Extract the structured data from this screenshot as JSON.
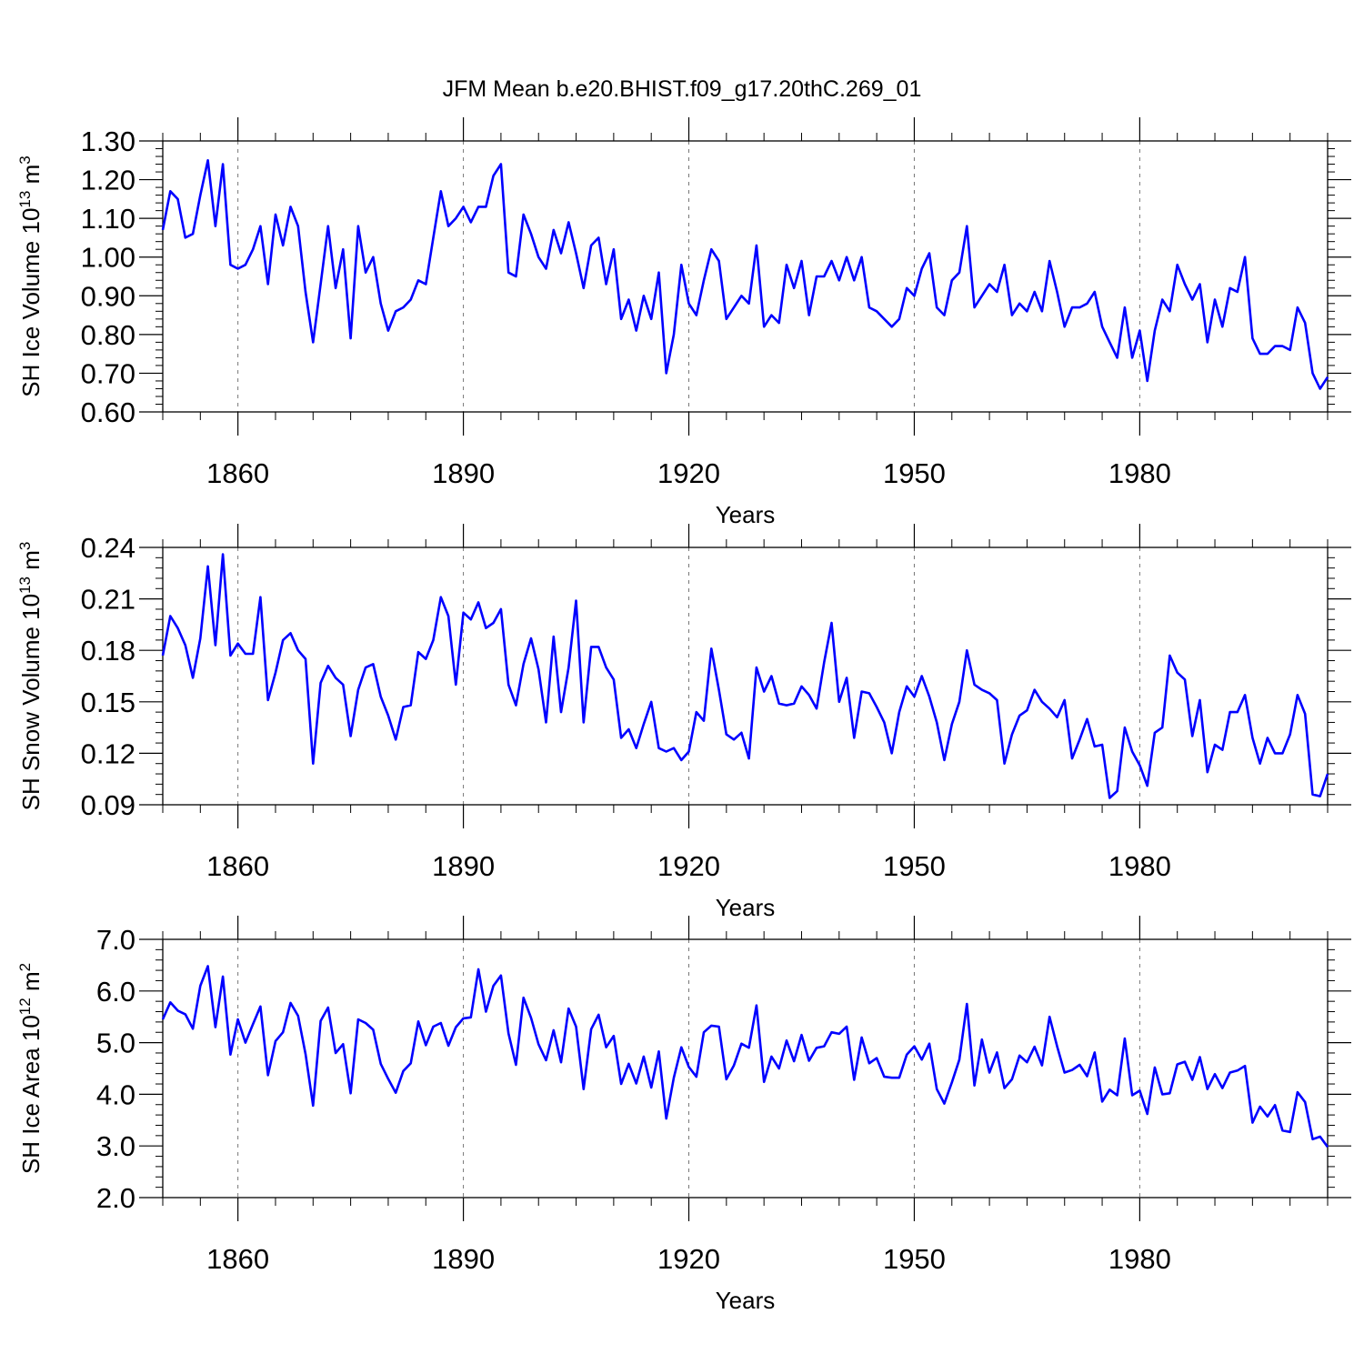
{
  "figure": {
    "title": "JFM Mean b.e20.BHIST.f09_g17.20thC.269_01",
    "series_color": "#0000ff"
  },
  "chart_data": [
    {
      "type": "line",
      "ylabel": "SH Ice Volume 10",
      "ylabel_sup": "13",
      "ylabel_unit": " m",
      "ylabel_unit_sup": "3",
      "xlabel": "Years",
      "xlim": [
        1850,
        2005
      ],
      "ylim": [
        0.6,
        1.3
      ],
      "yticks": [
        "0.60",
        "0.70",
        "0.80",
        "0.90",
        "1.00",
        "1.10",
        "1.20",
        "1.30"
      ],
      "xticks": [
        "1860",
        "1890",
        "1920",
        "1950",
        "1980"
      ],
      "grid": "vertical dashed at major x ticks",
      "series": [
        {
          "color": "#0000ff",
          "x_start": 1850,
          "values": [
            1.07,
            1.17,
            1.15,
            1.05,
            1.06,
            1.16,
            1.25,
            1.08,
            1.24,
            0.98,
            0.97,
            0.98,
            1.02,
            1.08,
            0.93,
            1.11,
            1.03,
            1.13,
            1.08,
            0.91,
            0.78,
            0.93,
            1.08,
            0.92,
            1.02,
            0.79,
            1.08,
            0.96,
            1.0,
            0.88,
            0.81,
            0.86,
            0.87,
            0.89,
            0.94,
            0.93,
            1.05,
            1.17,
            1.08,
            1.1,
            1.13,
            1.09,
            1.13,
            1.13,
            1.21,
            1.24,
            0.96,
            0.95,
            1.11,
            1.06,
            1.0,
            0.97,
            1.07,
            1.01,
            1.09,
            1.01,
            0.92,
            1.03,
            1.05,
            0.93,
            1.02,
            0.84,
            0.89,
            0.81,
            0.9,
            0.84,
            0.96,
            0.7,
            0.8,
            0.98,
            0.88,
            0.85,
            0.94,
            1.02,
            0.99,
            0.84,
            0.87,
            0.9,
            0.88,
            1.03,
            0.82,
            0.85,
            0.83,
            0.98,
            0.92,
            0.99,
            0.85,
            0.95,
            0.95,
            0.99,
            0.94,
            1.0,
            0.94,
            1.0,
            0.87,
            0.86,
            0.84,
            0.82,
            0.84,
            0.92,
            0.9,
            0.97,
            1.01,
            0.87,
            0.85,
            0.94,
            0.96,
            1.08,
            0.87,
            0.9,
            0.93,
            0.91,
            0.98,
            0.85,
            0.88,
            0.86,
            0.91,
            0.86,
            0.99,
            0.91,
            0.82,
            0.87,
            0.87,
            0.88,
            0.91,
            0.82,
            0.78,
            0.74,
            0.87,
            0.74,
            0.81,
            0.68,
            0.81,
            0.89,
            0.86,
            0.98,
            0.93,
            0.89,
            0.93,
            0.78,
            0.89,
            0.82,
            0.92,
            0.91,
            1.0,
            0.79,
            0.75,
            0.75,
            0.77,
            0.77,
            0.76,
            0.87,
            0.83,
            0.7,
            0.66,
            0.69
          ]
        }
      ]
    },
    {
      "type": "line",
      "ylabel": "SH Snow Volume 10",
      "ylabel_sup": "13",
      "ylabel_unit": " m",
      "ylabel_unit_sup": "3",
      "xlabel": "Years",
      "xlim": [
        1850,
        2005
      ],
      "ylim": [
        0.09,
        0.24
      ],
      "yticks": [
        "0.09",
        "0.12",
        "0.15",
        "0.18",
        "0.21",
        "0.24"
      ],
      "xticks": [
        "1860",
        "1890",
        "1920",
        "1950",
        "1980"
      ],
      "grid": "vertical dashed at major x ticks",
      "series": [
        {
          "color": "#0000ff",
          "x_start": 1850,
          "values": [
            0.177,
            0.2,
            0.193,
            0.183,
            0.164,
            0.187,
            0.229,
            0.183,
            0.236,
            0.177,
            0.184,
            0.178,
            0.178,
            0.211,
            0.151,
            0.167,
            0.186,
            0.19,
            0.18,
            0.175,
            0.114,
            0.161,
            0.171,
            0.164,
            0.16,
            0.13,
            0.157,
            0.17,
            0.172,
            0.153,
            0.142,
            0.128,
            0.147,
            0.148,
            0.179,
            0.175,
            0.186,
            0.211,
            0.2,
            0.16,
            0.202,
            0.198,
            0.208,
            0.193,
            0.196,
            0.204,
            0.16,
            0.148,
            0.172,
            0.187,
            0.169,
            0.138,
            0.188,
            0.144,
            0.17,
            0.209,
            0.138,
            0.182,
            0.182,
            0.17,
            0.163,
            0.129,
            0.134,
            0.123,
            0.137,
            0.15,
            0.123,
            0.121,
            0.123,
            0.116,
            0.121,
            0.144,
            0.139,
            0.181,
            0.157,
            0.131,
            0.128,
            0.132,
            0.117,
            0.17,
            0.156,
            0.165,
            0.149,
            0.148,
            0.149,
            0.159,
            0.154,
            0.146,
            0.173,
            0.196,
            0.15,
            0.164,
            0.129,
            0.156,
            0.155,
            0.147,
            0.138,
            0.12,
            0.144,
            0.159,
            0.153,
            0.165,
            0.153,
            0.138,
            0.116,
            0.137,
            0.15,
            0.18,
            0.16,
            0.157,
            0.155,
            0.151,
            0.114,
            0.131,
            0.142,
            0.145,
            0.157,
            0.15,
            0.146,
            0.141,
            0.151,
            0.117,
            0.128,
            0.14,
            0.124,
            0.125,
            0.094,
            0.098,
            0.135,
            0.121,
            0.113,
            0.101,
            0.132,
            0.135,
            0.177,
            0.167,
            0.163,
            0.13,
            0.151,
            0.109,
            0.125,
            0.122,
            0.144,
            0.144,
            0.154,
            0.129,
            0.114,
            0.129,
            0.12,
            0.12,
            0.131,
            0.154,
            0.143,
            0.096,
            0.095,
            0.108
          ]
        }
      ]
    },
    {
      "type": "line",
      "ylabel": "SH Ice Area 10",
      "ylabel_sup": "12",
      "ylabel_unit": " m",
      "ylabel_unit_sup": "2",
      "xlabel": "Years",
      "xlim": [
        1850,
        2005
      ],
      "ylim": [
        2.0,
        7.0
      ],
      "yticks": [
        "2.0",
        "3.0",
        "4.0",
        "5.0",
        "6.0",
        "7.0"
      ],
      "xticks": [
        "1860",
        "1890",
        "1920",
        "1950",
        "1980"
      ],
      "grid": "vertical dashed at major x ticks",
      "series": [
        {
          "color": "#0000ff",
          "x_start": 1850,
          "values": [
            5.45,
            5.78,
            5.62,
            5.55,
            5.27,
            6.1,
            6.48,
            5.3,
            6.28,
            4.77,
            5.45,
            5.0,
            5.36,
            5.7,
            4.37,
            5.03,
            5.2,
            5.77,
            5.52,
            4.78,
            3.78,
            5.42,
            5.68,
            4.8,
            4.97,
            4.02,
            5.45,
            5.38,
            5.25,
            4.59,
            4.3,
            4.03,
            4.45,
            4.6,
            5.41,
            4.95,
            5.31,
            5.38,
            4.94,
            5.3,
            5.47,
            5.49,
            6.42,
            5.6,
            6.1,
            6.3,
            5.18,
            4.57,
            5.87,
            5.48,
            4.97,
            4.66,
            5.24,
            4.62,
            5.66,
            5.31,
            4.1,
            5.26,
            5.54,
            4.91,
            5.13,
            4.2,
            4.59,
            4.21,
            4.73,
            4.13,
            4.83,
            3.53,
            4.32,
            4.91,
            4.53,
            4.34,
            5.2,
            5.33,
            5.31,
            4.29,
            4.56,
            4.98,
            4.9,
            5.72,
            4.24,
            4.73,
            4.5,
            5.04,
            4.64,
            5.15,
            4.65,
            4.9,
            4.93,
            5.2,
            5.17,
            5.31,
            4.28,
            5.1,
            4.6,
            4.7,
            4.34,
            4.32,
            4.32,
            4.77,
            4.93,
            4.67,
            4.98,
            4.1,
            3.82,
            4.23,
            4.67,
            5.75,
            4.17,
            5.06,
            4.42,
            4.81,
            4.12,
            4.29,
            4.75,
            4.62,
            4.92,
            4.56,
            5.5,
            4.93,
            4.42,
            4.47,
            4.57,
            4.35,
            4.81,
            3.86,
            4.09,
            3.98,
            5.08,
            3.98,
            4.07,
            3.62,
            4.52,
            4.0,
            4.02,
            4.58,
            4.63,
            4.28,
            4.72,
            4.1,
            4.39,
            4.12,
            4.42,
            4.46,
            4.55,
            3.45,
            3.76,
            3.57,
            3.79,
            3.3,
            3.27,
            4.04,
            3.85,
            3.13,
            3.18,
            2.98
          ]
        }
      ]
    }
  ]
}
